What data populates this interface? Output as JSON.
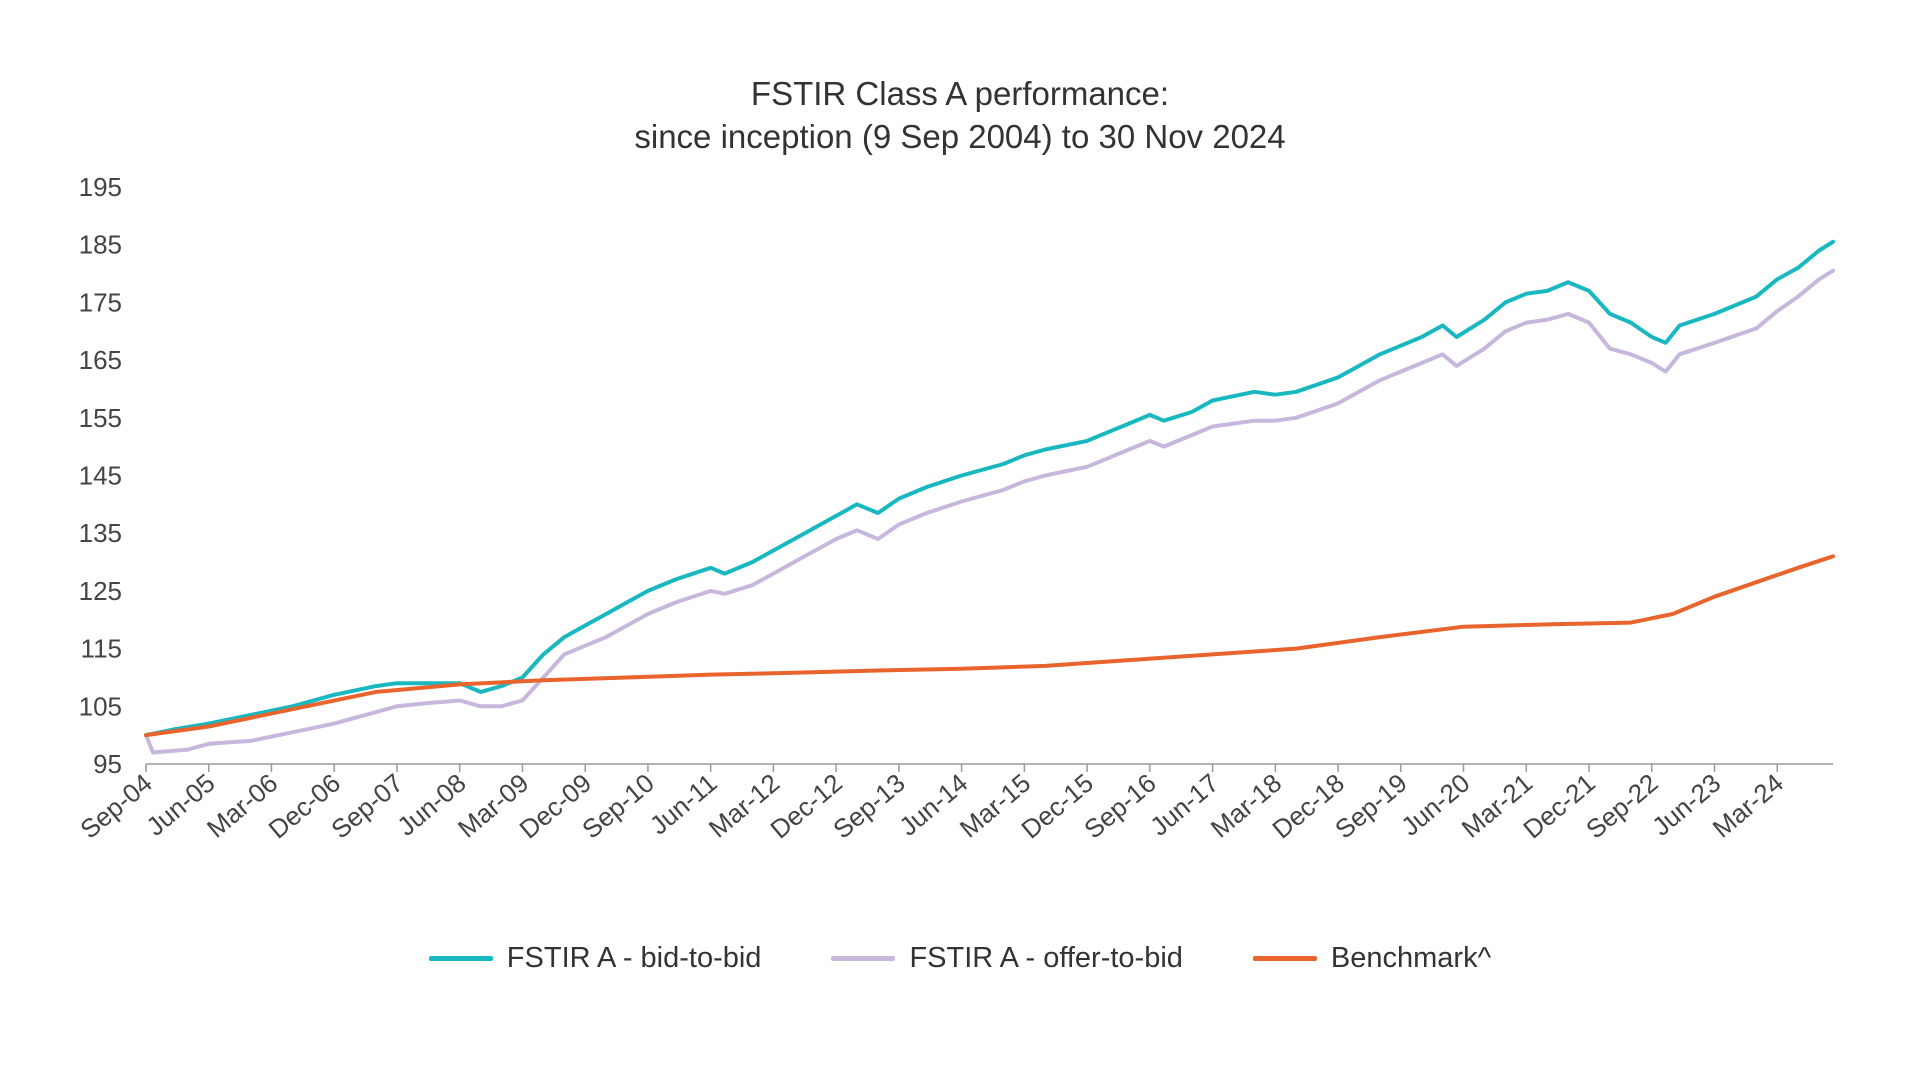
{
  "chart_data": {
    "type": "line",
    "title": "FSTIR Class A performance:",
    "subtitle": "since inception (9 Sep 2004) to 30 Nov 2024",
    "ylim": [
      95,
      195
    ],
    "yticks": [
      95,
      105,
      115,
      125,
      135,
      145,
      155,
      165,
      175,
      185,
      195
    ],
    "xlim": [
      "2004-09",
      "2024-11"
    ],
    "xtick_labels": [
      "Sep-04",
      "Jun-05",
      "Mar-06",
      "Dec-06",
      "Sep-07",
      "Jun-08",
      "Mar-09",
      "Dec-09",
      "Sep-10",
      "Jun-11",
      "Mar-12",
      "Dec-12",
      "Sep-13",
      "Jun-14",
      "Mar-15",
      "Dec-15",
      "Sep-16",
      "Jun-17",
      "Mar-18",
      "Dec-18",
      "Sep-19",
      "Jun-20",
      "Mar-21",
      "Dec-21",
      "Sep-22",
      "Jun-23",
      "Mar-24"
    ],
    "grid": false,
    "legend_position": "bottom",
    "series": [
      {
        "name": "FSTIR A - bid-to-bid",
        "color": "#19b8c1",
        "points": [
          [
            "2004-09",
            100
          ],
          [
            "2005-01",
            101
          ],
          [
            "2005-06",
            102
          ],
          [
            "2005-12",
            103.5
          ],
          [
            "2006-06",
            105
          ],
          [
            "2006-12",
            107
          ],
          [
            "2007-06",
            108.5
          ],
          [
            "2007-09",
            109
          ],
          [
            "2008-01",
            109
          ],
          [
            "2008-06",
            109
          ],
          [
            "2008-09",
            107.5
          ],
          [
            "2008-12",
            108.5
          ],
          [
            "2009-03",
            110
          ],
          [
            "2009-06",
            114
          ],
          [
            "2009-09",
            117
          ],
          [
            "2009-12",
            119
          ],
          [
            "2010-03",
            121
          ],
          [
            "2010-06",
            123
          ],
          [
            "2010-09",
            125
          ],
          [
            "2011-01",
            127
          ],
          [
            "2011-06",
            129
          ],
          [
            "2011-08",
            128
          ],
          [
            "2011-12",
            130
          ],
          [
            "2012-03",
            132
          ],
          [
            "2012-06",
            134
          ],
          [
            "2012-12",
            138
          ],
          [
            "2013-03",
            140
          ],
          [
            "2013-06",
            138.5
          ],
          [
            "2013-09",
            141
          ],
          [
            "2014-01",
            143
          ],
          [
            "2014-06",
            145
          ],
          [
            "2014-12",
            147
          ],
          [
            "2015-03",
            148.5
          ],
          [
            "2015-06",
            149.5
          ],
          [
            "2015-12",
            151
          ],
          [
            "2016-03",
            152.5
          ],
          [
            "2016-06",
            154
          ],
          [
            "2016-09",
            155.5
          ],
          [
            "2016-11",
            154.5
          ],
          [
            "2017-03",
            156
          ],
          [
            "2017-06",
            158
          ],
          [
            "2017-12",
            159.5
          ],
          [
            "2018-03",
            159
          ],
          [
            "2018-06",
            159.5
          ],
          [
            "2018-12",
            162
          ],
          [
            "2019-03",
            164
          ],
          [
            "2019-06",
            166
          ],
          [
            "2019-09",
            167.5
          ],
          [
            "2019-12",
            169
          ],
          [
            "2020-03",
            171
          ],
          [
            "2020-05",
            169
          ],
          [
            "2020-09",
            172
          ],
          [
            "2020-12",
            175
          ],
          [
            "2021-03",
            176.5
          ],
          [
            "2021-06",
            177
          ],
          [
            "2021-09",
            178.5
          ],
          [
            "2021-12",
            177
          ],
          [
            "2022-03",
            173
          ],
          [
            "2022-06",
            171.5
          ],
          [
            "2022-09",
            169
          ],
          [
            "2022-11",
            168
          ],
          [
            "2023-01",
            171
          ],
          [
            "2023-06",
            173
          ],
          [
            "2023-12",
            176
          ],
          [
            "2024-03",
            179
          ],
          [
            "2024-06",
            181
          ],
          [
            "2024-09",
            184
          ],
          [
            "2024-11",
            185.5
          ]
        ]
      },
      {
        "name": "FSTIR A - offer-to-bid",
        "color": "#c8b7dc",
        "points": [
          [
            "2004-09",
            100
          ],
          [
            "2004-10",
            97
          ],
          [
            "2005-03",
            97.5
          ],
          [
            "2005-06",
            98.5
          ],
          [
            "2005-12",
            99
          ],
          [
            "2006-06",
            100.5
          ],
          [
            "2006-12",
            102
          ],
          [
            "2007-06",
            104
          ],
          [
            "2007-09",
            105
          ],
          [
            "2008-01",
            105.5
          ],
          [
            "2008-06",
            106
          ],
          [
            "2008-09",
            105
          ],
          [
            "2008-12",
            105
          ],
          [
            "2009-03",
            106
          ],
          [
            "2009-06",
            110
          ],
          [
            "2009-09",
            114
          ],
          [
            "2009-12",
            115.5
          ],
          [
            "2010-03",
            117
          ],
          [
            "2010-06",
            119
          ],
          [
            "2010-09",
            121
          ],
          [
            "2011-01",
            123
          ],
          [
            "2011-06",
            125
          ],
          [
            "2011-08",
            124.5
          ],
          [
            "2011-12",
            126
          ],
          [
            "2012-03",
            128
          ],
          [
            "2012-06",
            130
          ],
          [
            "2012-12",
            134
          ],
          [
            "2013-03",
            135.5
          ],
          [
            "2013-06",
            134
          ],
          [
            "2013-09",
            136.5
          ],
          [
            "2014-01",
            138.5
          ],
          [
            "2014-06",
            140.5
          ],
          [
            "2014-12",
            142.5
          ],
          [
            "2015-03",
            144
          ],
          [
            "2015-06",
            145
          ],
          [
            "2015-12",
            146.5
          ],
          [
            "2016-03",
            148
          ],
          [
            "2016-06",
            149.5
          ],
          [
            "2016-09",
            151
          ],
          [
            "2016-11",
            150
          ],
          [
            "2017-03",
            152
          ],
          [
            "2017-06",
            153.5
          ],
          [
            "2017-12",
            154.5
          ],
          [
            "2018-03",
            154.5
          ],
          [
            "2018-06",
            155
          ],
          [
            "2018-12",
            157.5
          ],
          [
            "2019-03",
            159.5
          ],
          [
            "2019-06",
            161.5
          ],
          [
            "2019-09",
            163
          ],
          [
            "2019-12",
            164.5
          ],
          [
            "2020-03",
            166
          ],
          [
            "2020-05",
            164
          ],
          [
            "2020-09",
            167
          ],
          [
            "2020-12",
            170
          ],
          [
            "2021-03",
            171.5
          ],
          [
            "2021-06",
            172
          ],
          [
            "2021-09",
            173
          ],
          [
            "2021-12",
            171.5
          ],
          [
            "2022-03",
            167
          ],
          [
            "2022-06",
            166
          ],
          [
            "2022-09",
            164.5
          ],
          [
            "2022-11",
            163
          ],
          [
            "2023-01",
            166
          ],
          [
            "2023-06",
            168
          ],
          [
            "2023-12",
            170.5
          ],
          [
            "2024-03",
            173.5
          ],
          [
            "2024-06",
            176
          ],
          [
            "2024-09",
            179
          ],
          [
            "2024-11",
            180.5
          ]
        ]
      },
      {
        "name": "Benchmark^",
        "color": "#e8642c",
        "points": [
          [
            "2004-09",
            100
          ],
          [
            "2005-06",
            101.5
          ],
          [
            "2006-06",
            104.5
          ],
          [
            "2007-06",
            107.5
          ],
          [
            "2008-06",
            108.8
          ],
          [
            "2009-06",
            109.5
          ],
          [
            "2010-06",
            110
          ],
          [
            "2011-06",
            110.5
          ],
          [
            "2012-06",
            110.8
          ],
          [
            "2013-06",
            111.2
          ],
          [
            "2014-06",
            111.5
          ],
          [
            "2015-06",
            112
          ],
          [
            "2016-06",
            113
          ],
          [
            "2017-06",
            114
          ],
          [
            "2018-06",
            115
          ],
          [
            "2019-06",
            117
          ],
          [
            "2020-06",
            118.8
          ],
          [
            "2021-06",
            119.2
          ],
          [
            "2022-06",
            119.5
          ],
          [
            "2022-12",
            121
          ],
          [
            "2023-06",
            124
          ],
          [
            "2023-12",
            126.5
          ],
          [
            "2024-06",
            129
          ],
          [
            "2024-11",
            131
          ]
        ]
      }
    ]
  }
}
